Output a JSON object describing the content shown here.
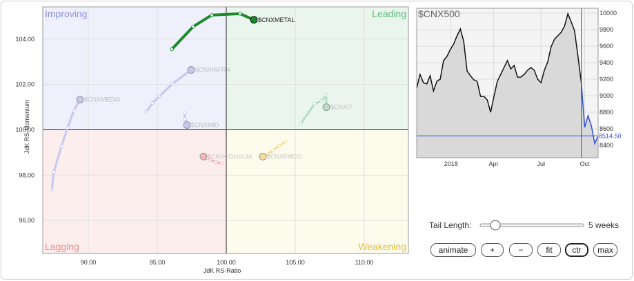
{
  "chart_data": [
    {
      "type": "rrg",
      "x_label": "JdK RS-Ratio",
      "y_label": "JdK RS-Momentum",
      "xlim": [
        86.7,
        113.2
      ],
      "ylim": [
        94.55,
        105.42
      ],
      "xticks": [
        {
          "value": 90,
          "label": "90.00"
        },
        {
          "value": 95,
          "label": "95.00"
        },
        {
          "value": 100,
          "label": "100.00"
        },
        {
          "value": 105,
          "label": "105.00"
        },
        {
          "value": 110,
          "label": "110.00"
        }
      ],
      "yticks": [
        {
          "value": 96,
          "label": "96.00"
        },
        {
          "value": 98,
          "label": "98.00"
        },
        {
          "value": 100,
          "label": "100.00"
        },
        {
          "value": 102,
          "label": "102.00"
        },
        {
          "value": 104,
          "label": "104.00"
        }
      ],
      "grid": true,
      "center": [
        100,
        100
      ],
      "quadrants": [
        {
          "label": "Improving",
          "corner": "top-left",
          "color": "#8a8fe0",
          "background": "#eef0fb"
        },
        {
          "label": "Leading",
          "corner": "top-right",
          "color": "#5cb87a",
          "background": "#eaf5ee"
        },
        {
          "label": "Lagging",
          "corner": "bottom-left",
          "color": "#ef8a8a",
          "background": "#fdeeee"
        },
        {
          "label": "Weakening",
          "corner": "bottom-right",
          "color": "#e9c23a",
          "background": "#fcfbec"
        }
      ],
      "series": [
        {
          "name": "$CNXMEDIA",
          "color": "#c5c8ee",
          "label_color": "#c0c0c0",
          "x": [
            87.35,
            87.5,
            88.05,
            88.5,
            88.95,
            89.4
          ],
          "values": [
            97.33,
            98.15,
            99.27,
            100.09,
            100.85,
            101.33
          ]
        },
        {
          "name": "$CNXINFRA",
          "color": "#c5c8ee",
          "label_color": "#c0c0c0",
          "x": [
            94.2,
            94.65,
            95.15,
            96.1,
            97.45
          ],
          "values": [
            100.79,
            101.18,
            101.48,
            102.03,
            102.64
          ]
        },
        {
          "name": "$CNXMID",
          "color": "#c5c8ee",
          "label_color": "#c0c0c0",
          "x": [
            97.0,
            97.0,
            97.1,
            97.15
          ],
          "values": [
            100.73,
            100.48,
            100.3,
            100.21
          ]
        },
        {
          "name": "$CNXIT",
          "color": "#b5dfc0",
          "label_color": "#c0c0c0",
          "x": [
            105.4,
            106.4,
            106.9,
            107.25,
            107.25
          ],
          "values": [
            100.27,
            101.15,
            101.27,
            101.52,
            101.0
          ]
        },
        {
          "name": "$CNXCONSUM",
          "color": "#f3b5b5",
          "label_color": "#c8c8c8",
          "x": [
            99.65,
            99.25,
            98.85,
            98.6,
            98.35
          ],
          "values": [
            98.52,
            98.58,
            98.67,
            98.76,
            98.82
          ]
        },
        {
          "name": "$CNXFMCG",
          "color": "#f2de9a",
          "label_color": "#c8c8c8",
          "x": [
            104.3,
            103.85,
            103.4,
            103.05,
            102.65
          ],
          "values": [
            99.48,
            99.3,
            99.09,
            98.94,
            98.82
          ]
        },
        {
          "name": "$CNXMETAL",
          "color": "#1a8a2a",
          "label_color": "#222222",
          "x": [
            96.05,
            97.6,
            98.95,
            101.0,
            102.0
          ],
          "values": [
            103.55,
            104.55,
            105.06,
            105.12,
            104.85
          ]
        }
      ]
    },
    {
      "type": "line",
      "title": "$CNX500",
      "xlim": [
        0,
        54
      ],
      "ylim": [
        8250,
        10058
      ],
      "xticks": [
        {
          "value": 10.2,
          "label": "2018"
        },
        {
          "value": 22.9,
          "label": "Apr"
        },
        {
          "value": 37,
          "label": "Jul"
        },
        {
          "value": 50,
          "label": "Oct"
        }
      ],
      "yticks": [
        8400,
        8600,
        8800,
        9000,
        9200,
        9400,
        9600,
        9800,
        10000
      ],
      "grid": true,
      "fill": "#d9d9d9",
      "series": [
        {
          "color": "#111111",
          "x": [
            0,
            1,
            2,
            3,
            4,
            5,
            6,
            7,
            8,
            9,
            10,
            11,
            12,
            13,
            14,
            15,
            16,
            17,
            18,
            19,
            20,
            21,
            22,
            23,
            24,
            25,
            26,
            27,
            28,
            29,
            30,
            31,
            32,
            33,
            34,
            35,
            36,
            37,
            38,
            39,
            40,
            41,
            42,
            43,
            44,
            45,
            46,
            47,
            48,
            49
          ],
          "values": [
            9092,
            9258,
            9158,
            9142,
            9242,
            9058,
            9175,
            9200,
            9425,
            9475,
            9558,
            9625,
            9725,
            9808,
            9658,
            9300,
            9242,
            9192,
            9175,
            8992,
            8992,
            8950,
            8800,
            8992,
            9175,
            9258,
            9342,
            9425,
            9325,
            9367,
            9225,
            9225,
            9258,
            9308,
            9342,
            9308,
            9200,
            9158,
            9308,
            9408,
            9592,
            9683,
            9725,
            9767,
            9842,
            9992,
            9892,
            9783,
            9475,
            9158
          ]
        },
        {
          "color": "#2f4fd8",
          "x": [
            49,
            50,
            51,
            52,
            53,
            54
          ],
          "values": [
            9158,
            8617,
            8758,
            8633,
            8420,
            8514.5
          ],
          "value_labels": [
            null,
            null,
            null,
            null,
            null,
            "8514.50"
          ]
        }
      ]
    }
  ],
  "controls": {
    "tail_label": "Tail Length:",
    "tail_value": "5 weeks",
    "buttons": [
      "animate",
      "+",
      "−",
      "fit",
      "ctr",
      "max"
    ]
  }
}
